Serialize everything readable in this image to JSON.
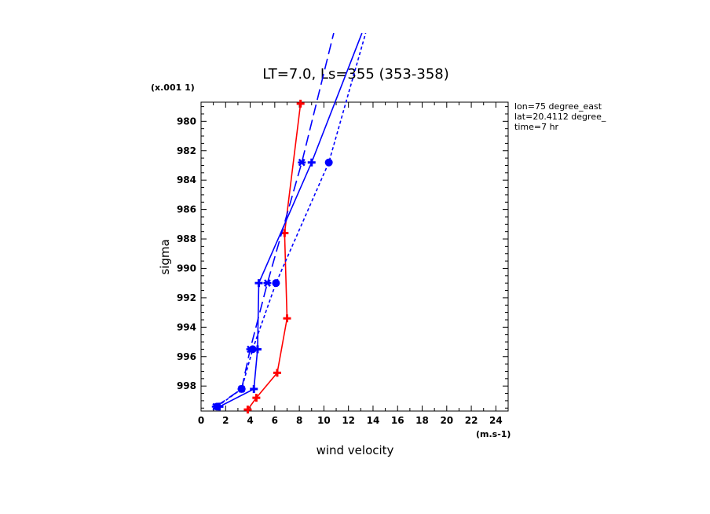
{
  "chart_data": {
    "type": "line",
    "title": "LT=7.0, Ls=355 (353-358)",
    "xlabel": "wind velocity",
    "ylabel": "sigma",
    "x_unit": "(m.s-1)",
    "y_unit": "(x.001 1)",
    "xlim": [
      0,
      25
    ],
    "ylim": [
      999.7,
      978.7
    ],
    "y_inverted": true,
    "x_ticks": [
      0,
      2,
      4,
      6,
      8,
      10,
      12,
      14,
      16,
      18,
      20,
      22,
      24
    ],
    "y_ticks": [
      980,
      982,
      984,
      986,
      988,
      990,
      992,
      994,
      996,
      998
    ],
    "info_lines": [
      "lon=75 degree_east",
      "lat=20.4112 degree_",
      "time=7 hr"
    ],
    "series": [
      {
        "color": "#ff0000",
        "dash": "solid",
        "marker": "plus",
        "points": [
          [
            3.8,
            999.6
          ],
          [
            4.5,
            998.8
          ],
          [
            6.2,
            997.1
          ],
          [
            7.0,
            993.4
          ],
          [
            6.8,
            987.6
          ],
          [
            8.1,
            978.8
          ]
        ]
      },
      {
        "color": "#0000ff",
        "dash": "solid",
        "marker": "plus",
        "points": [
          [
            1.5,
            999.4
          ],
          [
            4.3,
            998.2
          ],
          [
            4.6,
            995.5
          ],
          [
            4.7,
            991.0
          ],
          [
            9.0,
            982.8
          ],
          [
            13.1,
            974.0
          ]
        ]
      },
      {
        "color": "#0000ff",
        "dash": "longdash",
        "marker": "asterisk",
        "points": [
          [
            1.2,
            999.4
          ],
          [
            3.3,
            998.2
          ],
          [
            4.0,
            995.5
          ],
          [
            5.4,
            991.0
          ],
          [
            8.2,
            982.8
          ],
          [
            10.8,
            974.0
          ]
        ]
      },
      {
        "color": "#0000ff",
        "dash": "shortdash",
        "marker": "circle",
        "points": [
          [
            1.3,
            999.4
          ],
          [
            3.3,
            998.2
          ],
          [
            4.2,
            995.5
          ],
          [
            6.1,
            991.0
          ],
          [
            10.4,
            982.8
          ],
          [
            13.4,
            974.0
          ]
        ]
      }
    ]
  }
}
